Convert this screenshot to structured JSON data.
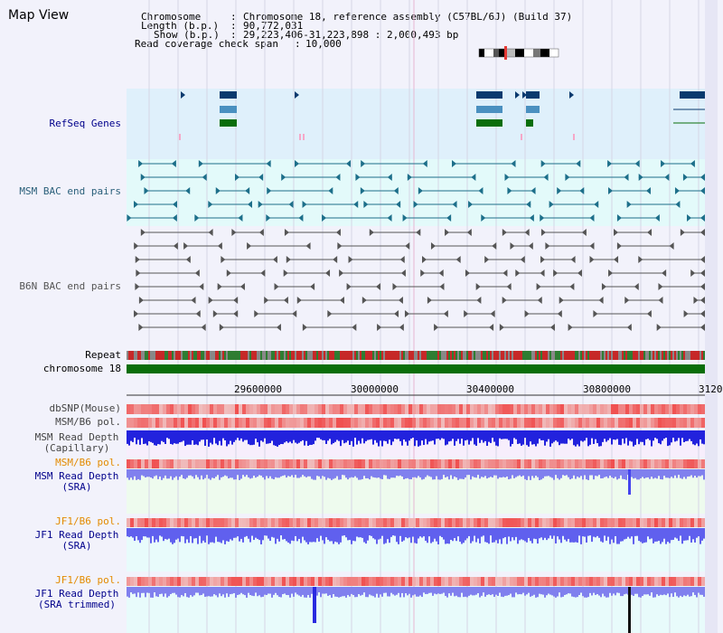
{
  "title": "Map View",
  "header": {
    "chromosome_key": "Chromosome",
    "chromosome_val": "Chromosome 18, reference assembly (C57BL/6J) (Build 37)",
    "length_key": "Length (b.p.)",
    "length_val": "90,772,031",
    "show_key": "Show (b.p.)",
    "show_val": "29,223,406-31,223,898 : 2,000,493 bp",
    "span_key": "Read coverage check span",
    "span_val": "10,000"
  },
  "tracks": {
    "refseq": "RefSeq Genes",
    "msm_bac": "MSM BAC end pairs",
    "b6n_bac": "B6N BAC end pairs",
    "repeat": "Repeat",
    "chrom": "chromosome 18",
    "dbsnp": "dbSNP(Mouse)",
    "msm_b6_pol": "MSM/B6 pol.",
    "msm_depth_cap_1": "MSM Read Depth",
    "msm_depth_cap_2": "(Capillary)",
    "msm_b6_pol_2": "MSM/B6 pol.",
    "msm_depth_sra_1": "MSM Read Depth",
    "msm_depth_sra_2": "(SRA)",
    "jf1_b6_pol": "JF1/B6 pol.",
    "jf1_depth_sra_1": "JF1 Read Depth",
    "jf1_depth_sra_2": "(SRA)",
    "jf1_b6_pol_2": "JF1/B6 pol.",
    "jf1_depth_trim_1": "JF1 Read Depth",
    "jf1_depth_trim_2": "(SRA trimmed)"
  },
  "axis": {
    "ticks": [
      "29600000",
      "30000000",
      "30400000",
      "30800000",
      "3120"
    ]
  },
  "colors": {
    "refseq_bg": "#dff0fb",
    "msm_bg": "#e3fafa",
    "gene_dark": "#0a3a6e",
    "gene_mid": "#4a90c0",
    "gene_green": "#0a6e0a",
    "msm_pair": "#1d6f8a",
    "b6n_pair": "#555555",
    "chrom_bar": "#0a6e0a",
    "depth_blue": "#2222dd",
    "depth_light": "#8080ee",
    "label_blue": "#00008b",
    "label_orange": "#e38b00",
    "label_teal": "#2a5f7a"
  }
}
